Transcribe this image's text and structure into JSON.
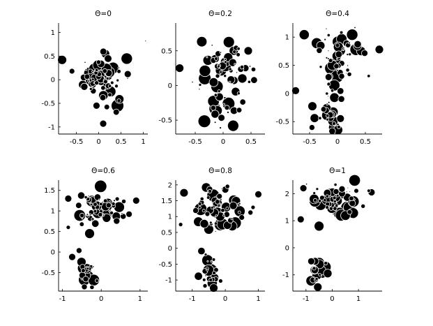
{
  "chart_data": [
    {
      "type": "scatter",
      "title": "Θ=0",
      "xlim": [
        -0.9,
        1.1
      ],
      "ylim": [
        -1.15,
        1.2
      ],
      "xticks": [
        -0.5,
        0,
        0.5,
        1
      ],
      "yticks": [
        -1,
        -0.5,
        0,
        0.5,
        1
      ],
      "xtick_labels": [
        "-0.5",
        "0",
        "0.5",
        "1"
      ],
      "ytick_labels": [
        "-1",
        "-0.5",
        "0",
        "0.5",
        "1"
      ],
      "seed": 11,
      "clusters": [
        {
          "cx": 0.05,
          "cy": 0.05,
          "sx": 0.25,
          "sy": 0.2,
          "n": 55
        },
        {
          "cx": 0.3,
          "cy": -0.35,
          "sx": 0.15,
          "sy": 0.15,
          "n": 10
        }
      ],
      "points": [
        {
          "x": -0.82,
          "y": 0.42,
          "r": 6.5
        },
        {
          "x": -0.6,
          "y": 0.18,
          "r": 4
        },
        {
          "x": 0.42,
          "y": -0.55,
          "r": 9
        },
        {
          "x": 0.1,
          "y": -0.93,
          "r": 5
        },
        {
          "x": -0.05,
          "y": -0.55,
          "r": 5
        },
        {
          "x": 0.65,
          "y": 0.12,
          "r": 5
        },
        {
          "x": 1.05,
          "y": 0.82,
          "r": 1
        },
        {
          "x": 0.15,
          "y": 0.55,
          "r": 6
        }
      ]
    },
    {
      "type": "scatter",
      "title": "Θ=0.2",
      "xlim": [
        -0.85,
        0.75
      ],
      "ylim": [
        -0.7,
        0.9
      ],
      "xticks": [
        -0.5,
        0,
        0.5
      ],
      "yticks": [
        -0.5,
        0,
        0.5
      ],
      "xtick_labels": [
        "-0.5",
        "0",
        "0.5"
      ],
      "ytick_labels": [
        "-0.5",
        "0",
        "0.5"
      ],
      "seed": 22,
      "clusters": [
        {
          "cx": 0.0,
          "cy": 0.25,
          "sx": 0.22,
          "sy": 0.18,
          "n": 55
        },
        {
          "cx": 0.0,
          "cy": -0.3,
          "sx": 0.12,
          "sy": 0.15,
          "n": 18
        }
      ],
      "points": [
        {
          "x": -0.78,
          "y": 0.25,
          "r": 6
        },
        {
          "x": 0.18,
          "y": -0.58,
          "r": 8
        },
        {
          "x": 0.45,
          "y": 0.5,
          "r": 6
        },
        {
          "x": 0.4,
          "y": 0.25,
          "r": 5
        },
        {
          "x": -0.55,
          "y": 0.05,
          "r": 1.2
        }
      ]
    },
    {
      "type": "scatter",
      "title": "Θ=0.4",
      "xlim": [
        -0.8,
        0.8
      ],
      "ylim": [
        -0.72,
        1.25
      ],
      "xticks": [
        -0.5,
        0,
        0.5
      ],
      "yticks": [
        -0.5,
        0,
        0.5,
        1
      ],
      "xtick_labels": [
        "-0.5",
        "0",
        "0.5"
      ],
      "ytick_labels": [
        "-0.5",
        "0",
        "0.5",
        "1"
      ],
      "seed": 33,
      "clusters": [
        {
          "cx": 0.05,
          "cy": 0.65,
          "sx": 0.22,
          "sy": 0.2,
          "n": 45
        },
        {
          "cx": -0.05,
          "cy": 0.15,
          "sx": 0.12,
          "sy": 0.22,
          "n": 15
        },
        {
          "cx": -0.15,
          "cy": -0.45,
          "sx": 0.15,
          "sy": 0.15,
          "n": 22
        }
      ],
      "points": [
        {
          "x": -0.75,
          "y": 0.05,
          "r": 5.5
        },
        {
          "x": 0.75,
          "y": 0.78,
          "r": 6
        },
        {
          "x": -0.3,
          "y": 0.85,
          "r": 6
        },
        {
          "x": -0.2,
          "y": 1.15,
          "r": 1
        }
      ]
    },
    {
      "type": "scatter",
      "title": "Θ=0.6",
      "xlim": [
        -1.1,
        1.2
      ],
      "ylim": [
        -0.95,
        1.75
      ],
      "xticks": [
        -1,
        0,
        1
      ],
      "yticks": [
        -0.5,
        0,
        0.5,
        1,
        1.5
      ],
      "xtick_labels": [
        "-1",
        "0",
        "1"
      ],
      "ytick_labels": [
        "-0.5",
        "0",
        "0.5",
        "1",
        "1.5"
      ],
      "seed": 44,
      "clusters": [
        {
          "cx": -0.05,
          "cy": 1.0,
          "sx": 0.35,
          "sy": 0.25,
          "n": 60
        },
        {
          "cx": -0.35,
          "cy": -0.45,
          "sx": 0.12,
          "sy": 0.2,
          "n": 22
        }
      ],
      "points": [
        {
          "x": -0.75,
          "y": -0.12,
          "r": 5
        },
        {
          "x": -0.85,
          "y": 1.3,
          "r": 5
        },
        {
          "x": 0.9,
          "y": 1.25,
          "r": 5
        },
        {
          "x": -0.3,
          "y": 0.45,
          "r": 7
        },
        {
          "x": -0.85,
          "y": 0.6,
          "r": 3
        }
      ]
    },
    {
      "type": "scatter",
      "title": "Θ=0.8",
      "xlim": [
        -1.5,
        1.2
      ],
      "ylim": [
        -1.35,
        2.15
      ],
      "xticks": [
        -1,
        0,
        1
      ],
      "yticks": [
        -1,
        -0.5,
        0,
        0.5,
        1,
        1.5,
        2
      ],
      "xtick_labels": [
        "-1",
        "0",
        "1"
      ],
      "ytick_labels": [
        "-1",
        "-0.5",
        "0",
        "0.5",
        "1",
        "1.5",
        "2"
      ],
      "seed": 55,
      "clusters": [
        {
          "cx": -0.2,
          "cy": 1.15,
          "sx": 0.4,
          "sy": 0.35,
          "n": 60
        },
        {
          "cx": -0.5,
          "cy": -0.7,
          "sx": 0.15,
          "sy": 0.25,
          "n": 24
        }
      ],
      "points": [
        {
          "x": -1.25,
          "y": 1.75,
          "r": 6
        },
        {
          "x": 0.0,
          "y": 1.85,
          "r": 5
        },
        {
          "x": 1.0,
          "y": 1.7,
          "r": 5
        },
        {
          "x": -0.5,
          "y": 0.6,
          "r": 7
        },
        {
          "x": -0.35,
          "y": -1.25,
          "r": 6
        },
        {
          "x": -1.35,
          "y": 0.75,
          "r": 3
        }
      ]
    },
    {
      "type": "scatter",
      "title": "Θ=1",
      "xlim": [
        -1.5,
        1.9
      ],
      "ylim": [
        -1.6,
        2.5
      ],
      "xticks": [
        -1,
        0,
        1
      ],
      "yticks": [
        -1,
        0,
        1,
        2
      ],
      "xtick_labels": [
        "-1",
        "0",
        "1"
      ],
      "ytick_labels": [
        "-1",
        "0",
        "1",
        "2"
      ],
      "seed": 66,
      "clusters": [
        {
          "cx": 0.1,
          "cy": 1.75,
          "sx": 0.45,
          "sy": 0.35,
          "n": 58
        },
        {
          "cx": -0.55,
          "cy": -0.85,
          "sx": 0.2,
          "sy": 0.25,
          "n": 20
        }
      ],
      "points": [
        {
          "x": -1.1,
          "y": 2.2,
          "r": 5
        },
        {
          "x": 1.5,
          "y": 2.05,
          "r": 5
        },
        {
          "x": -1.2,
          "y": 1.05,
          "r": 5
        },
        {
          "x": -0.5,
          "y": 0.8,
          "r": 7
        },
        {
          "x": -0.55,
          "y": -1.45,
          "r": 6
        },
        {
          "x": -0.8,
          "y": -0.5,
          "r": 5
        }
      ]
    }
  ]
}
